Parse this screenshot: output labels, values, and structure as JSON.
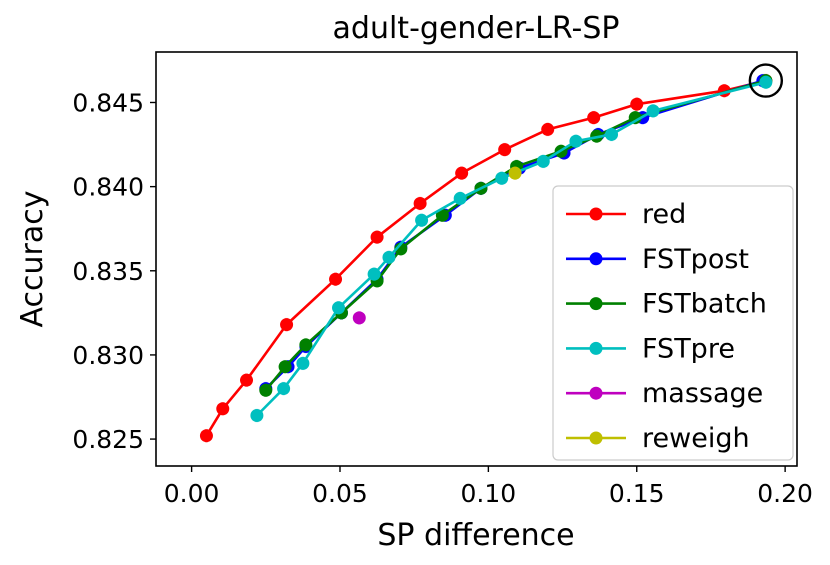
{
  "chart_data": {
    "type": "line",
    "title": "adult-gender-LR-SP",
    "xlabel": "SP difference",
    "ylabel": "Accuracy",
    "xlim": [
      -0.012,
      0.204
    ],
    "ylim": [
      0.8234,
      0.848
    ],
    "xticks": [
      0.0,
      0.05,
      0.1,
      0.15,
      0.2
    ],
    "xtick_labels": [
      "0.00",
      "0.05",
      "0.10",
      "0.15",
      "0.20"
    ],
    "yticks": [
      0.825,
      0.83,
      0.835,
      0.84,
      0.845
    ],
    "ytick_labels": [
      "0.825",
      "0.830",
      "0.835",
      "0.840",
      "0.845"
    ],
    "legend_position": "lower-right",
    "highlight": {
      "x": 0.1935,
      "y": 0.8463,
      "shape": "circle"
    },
    "series": [
      {
        "name": "red",
        "color": "#ff0000",
        "line": true,
        "points": [
          [
            0.005,
            0.8252
          ],
          [
            0.0105,
            0.8268
          ],
          [
            0.0185,
            0.8285
          ],
          [
            0.032,
            0.8318
          ],
          [
            0.0485,
            0.8345
          ],
          [
            0.0625,
            0.837
          ],
          [
            0.077,
            0.839
          ],
          [
            0.091,
            0.8408
          ],
          [
            0.1055,
            0.8422
          ],
          [
            0.12,
            0.8434
          ],
          [
            0.1355,
            0.8441
          ],
          [
            0.15,
            0.8449
          ],
          [
            0.1795,
            0.8457
          ],
          [
            0.1935,
            0.8463
          ]
        ]
      },
      {
        "name": "FSTpost",
        "color": "#0000ff",
        "line": true,
        "points": [
          [
            0.025,
            0.828
          ],
          [
            0.0325,
            0.8293
          ],
          [
            0.0385,
            0.8305
          ],
          [
            0.0505,
            0.8325
          ],
          [
            0.0625,
            0.8345
          ],
          [
            0.0705,
            0.8364
          ],
          [
            0.0855,
            0.8383
          ],
          [
            0.0975,
            0.8399
          ],
          [
            0.1105,
            0.8411
          ],
          [
            0.1255,
            0.842
          ],
          [
            0.137,
            0.8431
          ],
          [
            0.152,
            0.8441
          ],
          [
            0.1925,
            0.8463
          ]
        ]
      },
      {
        "name": "FSTbatch",
        "color": "#008000",
        "line": true,
        "points": [
          [
            0.025,
            0.8279
          ],
          [
            0.0315,
            0.8293
          ],
          [
            0.0385,
            0.8306
          ],
          [
            0.0505,
            0.8325
          ],
          [
            0.0625,
            0.8344
          ],
          [
            0.0705,
            0.8363
          ],
          [
            0.0845,
            0.8383
          ],
          [
            0.0975,
            0.8399
          ],
          [
            0.1095,
            0.8412
          ],
          [
            0.1245,
            0.8421
          ],
          [
            0.1365,
            0.843
          ],
          [
            0.1495,
            0.8441
          ],
          [
            0.1935,
            0.8463
          ]
        ]
      },
      {
        "name": "FSTpre",
        "color": "#00bfbf",
        "line": true,
        "points": [
          [
            0.022,
            0.8264
          ],
          [
            0.031,
            0.828
          ],
          [
            0.0375,
            0.8295
          ],
          [
            0.0495,
            0.8328
          ],
          [
            0.0615,
            0.8348
          ],
          [
            0.0665,
            0.8358
          ],
          [
            0.0775,
            0.838
          ],
          [
            0.0905,
            0.8393
          ],
          [
            0.1045,
            0.8405
          ],
          [
            0.1185,
            0.8415
          ],
          [
            0.1295,
            0.8427
          ],
          [
            0.1415,
            0.8431
          ],
          [
            0.1555,
            0.8445
          ],
          [
            0.1935,
            0.8462
          ]
        ]
      },
      {
        "name": "massage",
        "color": "#bf00bf",
        "line": false,
        "points": [
          [
            0.0565,
            0.8322
          ]
        ]
      },
      {
        "name": "reweigh",
        "color": "#bfbf00",
        "line": false,
        "points": [
          [
            0.109,
            0.8408
          ]
        ]
      }
    ]
  }
}
